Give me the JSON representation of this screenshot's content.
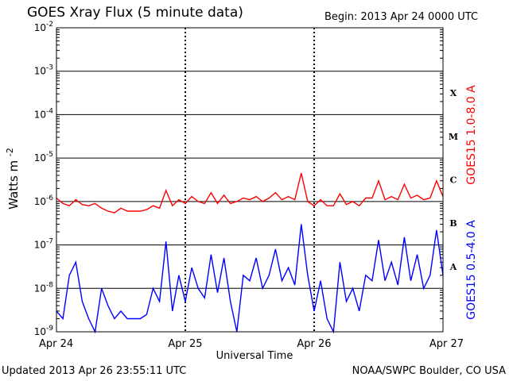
{
  "header": {
    "title": "GOES Xray Flux (5 minute data)",
    "begin": "Begin:  2013 Apr 24 0000 UTC"
  },
  "footer": {
    "updated": "Updated 2013 Apr 26 23:55:11 UTC",
    "credit": "NOAA/SWPC Boulder, CO USA"
  },
  "chart_data": {
    "type": "line",
    "title": "GOES Xray Flux (5 minute data)",
    "xlabel": "Universal Time",
    "ylabel_base": "Watts m",
    "ylabel_exp": "-2",
    "yscale": "log",
    "ylim": [
      1e-09,
      0.01
    ],
    "y_tick_exponents": [
      "-2",
      "-3",
      "-4",
      "-5",
      "-6",
      "-7",
      "-8",
      "-9"
    ],
    "x_ticks": [
      "Apr 24",
      "Apr 25",
      "Apr 26",
      "Apr 27"
    ],
    "grid": true,
    "flare_classes": [
      {
        "label": "X",
        "low": 0.0001,
        "high": 0.001
      },
      {
        "label": "M",
        "low": 1e-05,
        "high": 0.0001
      },
      {
        "label": "C",
        "low": 1e-06,
        "high": 1e-05
      },
      {
        "label": "B",
        "low": 1e-07,
        "high": 1e-06
      },
      {
        "label": "A",
        "low": 1e-08,
        "high": 1e-07
      }
    ],
    "series": [
      {
        "name": "GOES15 1.0-8.0 A",
        "color": "#ff0000",
        "x": [
          0,
          0.05,
          0.1,
          0.15,
          0.2,
          0.25,
          0.3,
          0.35,
          0.4,
          0.45,
          0.5,
          0.55,
          0.6,
          0.65,
          0.7,
          0.75,
          0.8,
          0.85,
          0.9,
          0.95,
          1.0,
          1.05,
          1.1,
          1.15,
          1.2,
          1.25,
          1.3,
          1.35,
          1.4,
          1.45,
          1.5,
          1.55,
          1.6,
          1.65,
          1.7,
          1.75,
          1.8,
          1.85,
          1.9,
          1.95,
          2.0,
          2.05,
          2.1,
          2.15,
          2.2,
          2.25,
          2.3,
          2.35,
          2.4,
          2.45,
          2.5,
          2.55,
          2.6,
          2.65,
          2.7,
          2.75,
          2.8,
          2.85,
          2.9,
          2.95,
          3.0
        ],
        "y": [
          1.2e-06,
          9e-07,
          8e-07,
          1.1e-06,
          8.5e-07,
          8e-07,
          9e-07,
          7e-07,
          6e-07,
          5.5e-07,
          7e-07,
          6e-07,
          6e-07,
          6e-07,
          6.5e-07,
          8e-07,
          7e-07,
          1.8e-06,
          8e-07,
          1.1e-06,
          9e-07,
          1.3e-06,
          1e-06,
          9e-07,
          1.6e-06,
          9e-07,
          1.4e-06,
          9e-07,
          1e-06,
          1.2e-06,
          1.1e-06,
          1.3e-06,
          1e-06,
          1.2e-06,
          1.6e-06,
          1.1e-06,
          1.3e-06,
          1.1e-06,
          4.5e-06,
          1e-06,
          8e-07,
          1.1e-06,
          8e-07,
          8e-07,
          1.5e-06,
          8.5e-07,
          1e-06,
          8e-07,
          1.2e-06,
          1.2e-06,
          3e-06,
          1.1e-06,
          1.3e-06,
          1.1e-06,
          2.5e-06,
          1.2e-06,
          1.4e-06,
          1.1e-06,
          1.2e-06,
          3e-06,
          1.3e-06
        ]
      },
      {
        "name": "GOES15 0.5-4.0 A",
        "color": "#0000ff",
        "x": [
          0,
          0.05,
          0.1,
          0.15,
          0.2,
          0.25,
          0.3,
          0.35,
          0.4,
          0.45,
          0.5,
          0.55,
          0.6,
          0.65,
          0.7,
          0.75,
          0.8,
          0.85,
          0.9,
          0.95,
          1.0,
          1.05,
          1.1,
          1.15,
          1.2,
          1.25,
          1.3,
          1.35,
          1.4,
          1.45,
          1.5,
          1.55,
          1.6,
          1.65,
          1.7,
          1.75,
          1.8,
          1.85,
          1.9,
          1.95,
          2.0,
          2.05,
          2.1,
          2.15,
          2.2,
          2.25,
          2.3,
          2.35,
          2.4,
          2.45,
          2.5,
          2.55,
          2.6,
          2.65,
          2.7,
          2.75,
          2.8,
          2.85,
          2.9,
          2.95,
          3.0
        ],
        "y": [
          3e-09,
          2e-09,
          2e-08,
          4e-08,
          5e-09,
          2e-09,
          1e-09,
          1e-08,
          4e-09,
          2e-09,
          3e-09,
          2e-09,
          2e-09,
          2e-09,
          2.5e-09,
          1e-08,
          5e-09,
          1.2e-07,
          3e-09,
          2e-08,
          5e-09,
          3e-08,
          1e-08,
          6e-09,
          6e-08,
          8e-09,
          5e-08,
          5e-09,
          1e-09,
          2e-08,
          1.5e-08,
          5e-08,
          1e-08,
          2e-08,
          8e-08,
          1.5e-08,
          3e-08,
          1.2e-08,
          3e-07,
          2e-08,
          3e-09,
          1.5e-08,
          2e-09,
          1e-09,
          4e-08,
          5e-09,
          1e-08,
          3e-09,
          2e-08,
          1.5e-08,
          1.3e-07,
          1.5e-08,
          4e-08,
          1.2e-08,
          1.5e-07,
          1.5e-08,
          6e-08,
          1e-08,
          2e-08,
          2.2e-07,
          2e-08
        ]
      }
    ]
  }
}
